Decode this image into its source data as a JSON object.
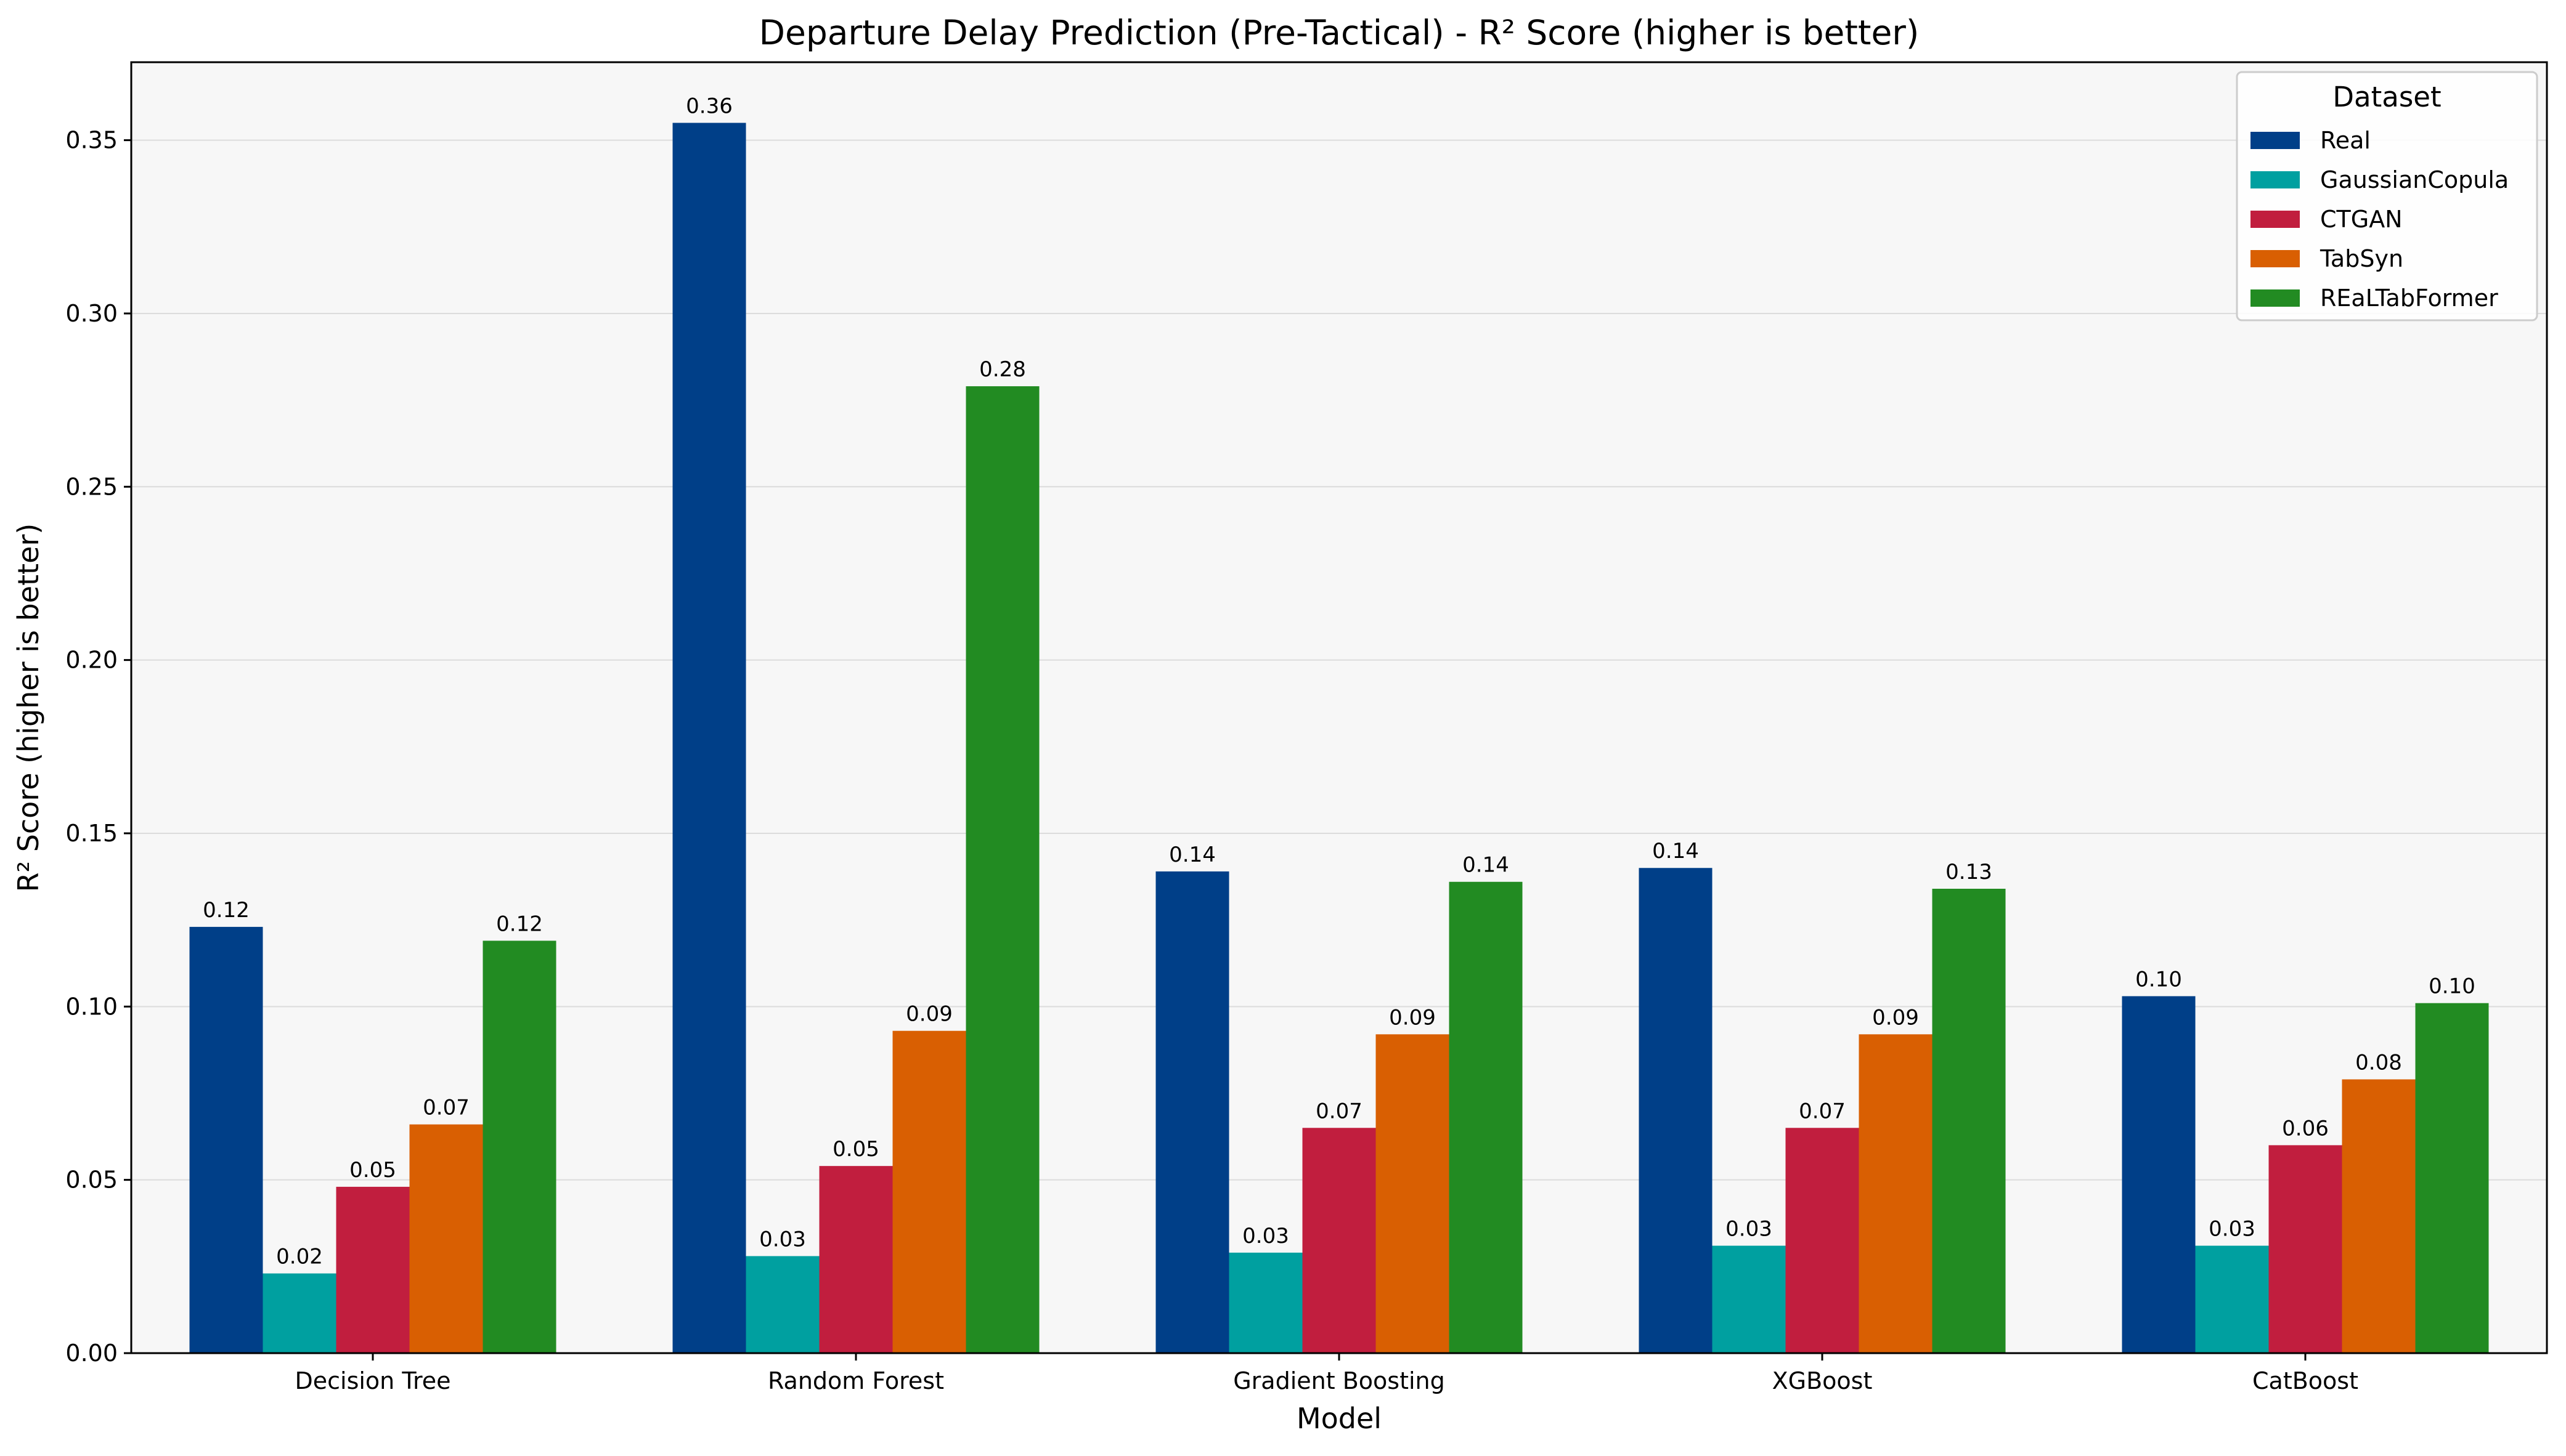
{
  "chart_data": {
    "type": "bar",
    "title": "Departure Delay Prediction (Pre-Tactical) - R² Score (higher is better)",
    "xlabel": "Model",
    "ylabel": "R² Score (higher is better)",
    "ylim": [
      0,
      0.3725
    ],
    "yticks": [
      "0.00",
      "0.05",
      "0.10",
      "0.15",
      "0.20",
      "0.25",
      "0.30",
      "0.35"
    ],
    "grid": "horizontal",
    "categories": [
      "Decision Tree",
      "Random Forest",
      "Gradient Boosting",
      "XGBoost",
      "CatBoost"
    ],
    "legend": {
      "title": "Dataset",
      "placement": "top-right"
    },
    "series": [
      {
        "name": "Real",
        "color": "#003f88",
        "values": [
          0.123,
          0.355,
          0.139,
          0.14,
          0.103
        ],
        "labels": [
          "0.12",
          "0.36",
          "0.14",
          "0.14",
          "0.10"
        ]
      },
      {
        "name": "GaussianCopula",
        "color": "#00a0a0",
        "values": [
          0.023,
          0.028,
          0.029,
          0.031,
          0.031
        ],
        "labels": [
          "0.02",
          "0.03",
          "0.03",
          "0.03",
          "0.03"
        ]
      },
      {
        "name": "CTGAN",
        "color": "#c11e3e",
        "values": [
          0.048,
          0.054,
          0.065,
          0.065,
          0.06
        ],
        "labels": [
          "0.05",
          "0.05",
          "0.07",
          "0.07",
          "0.06"
        ]
      },
      {
        "name": "TabSyn",
        "color": "#d95f02",
        "values": [
          0.066,
          0.093,
          0.092,
          0.092,
          0.079
        ],
        "labels": [
          "0.07",
          "0.09",
          "0.09",
          "0.09",
          "0.08"
        ]
      },
      {
        "name": "REaLTabFormer",
        "color": "#228b22",
        "values": [
          0.119,
          0.279,
          0.136,
          0.134,
          0.101
        ],
        "labels": [
          "0.12",
          "0.28",
          "0.14",
          "0.13",
          "0.10"
        ]
      }
    ]
  }
}
